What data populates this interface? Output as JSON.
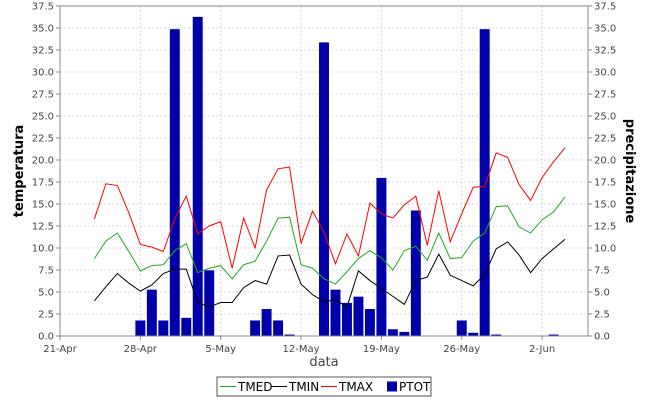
{
  "chart_data": {
    "type": "bar+line",
    "xlabel": "data",
    "ylabel_left": "temperatura",
    "ylabel_right": "precipitazione",
    "ylim": [
      0,
      37.5
    ],
    "yticks": [
      "0.0",
      "2.5",
      "5.0",
      "7.5",
      "10.0",
      "12.5",
      "15.0",
      "17.5",
      "20.0",
      "22.5",
      "25.0",
      "27.5",
      "30.0",
      "32.5",
      "35.0",
      "37.5"
    ],
    "xlim_day": [
      0,
      46
    ],
    "xticks": [
      {
        "day": 0,
        "label": "21-Apr"
      },
      {
        "day": 7,
        "label": "28-Apr"
      },
      {
        "day": 14,
        "label": "5-May"
      },
      {
        "day": 21,
        "label": "12-May"
      },
      {
        "day": 28,
        "label": "19-May"
      },
      {
        "day": 35,
        "label": "26-May"
      },
      {
        "day": 42,
        "label": "2-Jun"
      }
    ],
    "grid": true,
    "legend_position": "bottom",
    "colors": {
      "TMED": "#22aa22",
      "TMIN": "#000000",
      "TMAX": "#ff0000",
      "PTOT": "#0000aa"
    },
    "days": [
      3,
      4,
      5,
      6,
      7,
      8,
      9,
      10,
      11,
      12,
      13,
      14,
      15,
      16,
      17,
      18,
      19,
      20,
      21,
      22,
      23,
      24,
      25,
      26,
      27,
      28,
      29,
      30,
      31,
      32,
      33,
      34,
      35,
      36,
      37,
      38,
      39,
      40,
      41,
      42,
      43,
      44,
      45
    ],
    "series": [
      {
        "name": "TMED",
        "type": "line",
        "values": [
          8.8,
          10.8,
          11.7,
          9.6,
          7.4,
          8.0,
          8.1,
          9.7,
          10.5,
          7.2,
          7.7,
          8.0,
          6.5,
          8.1,
          8.5,
          10.8,
          13.4,
          13.5,
          8.1,
          7.7,
          6.5,
          5.9,
          7.3,
          8.8,
          9.7,
          8.9,
          7.5,
          9.7,
          10.2,
          8.6,
          11.7,
          8.8,
          8.9,
          10.8,
          11.7,
          14.7,
          14.8,
          12.4,
          11.7,
          13.2,
          14.1,
          15.8,
          null
        ]
      },
      {
        "name": "TMIN",
        "type": "line",
        "values": [
          4.0,
          5.6,
          7.1,
          6.0,
          5.1,
          5.8,
          7.1,
          7.6,
          7.6,
          3.8,
          3.3,
          3.8,
          3.8,
          5.5,
          6.3,
          5.9,
          9.1,
          9.2,
          5.9,
          4.7,
          3.9,
          4.1,
          3.3,
          7.4,
          6.3,
          5.4,
          4.5,
          3.6,
          6.3,
          6.7,
          9.3,
          6.9,
          6.3,
          5.7,
          7.0,
          9.9,
          10.7,
          9.2,
          7.2,
          8.8,
          9.9,
          11.0,
          null
        ]
      },
      {
        "name": "TMAX",
        "type": "line",
        "values": [
          13.3,
          17.3,
          17.1,
          14.0,
          10.4,
          10.1,
          9.6,
          13.3,
          15.9,
          11.6,
          12.5,
          13.0,
          7.7,
          13.4,
          10.0,
          16.6,
          19.0,
          19.2,
          10.5,
          14.2,
          11.8,
          8.2,
          11.6,
          9.1,
          15.1,
          13.9,
          13.4,
          14.9,
          15.9,
          10.3,
          16.5,
          10.7,
          13.9,
          16.9,
          17.0,
          20.8,
          20.3,
          17.2,
          15.4,
          18.0,
          19.8,
          21.4,
          null
        ]
      },
      {
        "name": "PTOT",
        "type": "bar",
        "values": [
          0,
          0,
          0,
          0,
          1.8,
          5.3,
          1.8,
          34.9,
          2.1,
          36.3,
          7.5,
          0,
          0,
          0,
          1.8,
          3.1,
          1.8,
          0.2,
          0,
          0,
          33.4,
          5.3,
          3.8,
          4.5,
          3.1,
          18.0,
          0.8,
          0.5,
          14.3,
          0,
          0,
          0,
          1.8,
          0.4,
          34.9,
          0.2,
          0,
          0,
          0,
          0,
          0.2,
          0,
          0
        ]
      }
    ]
  }
}
